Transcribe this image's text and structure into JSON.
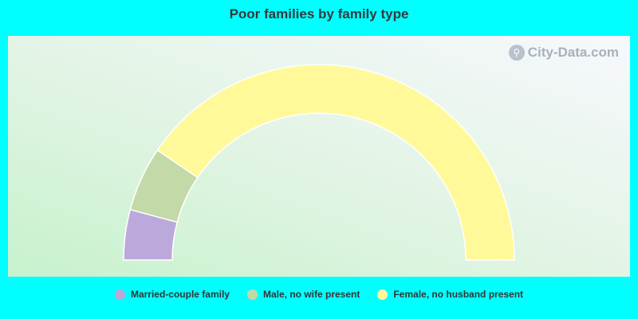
{
  "chart_data": {
    "type": "pie",
    "subtype": "semicircle-donut",
    "title": "Poor families by family type",
    "series": [
      {
        "name": "Married-couple family",
        "value": 8.3,
        "color": "#bca9db"
      },
      {
        "name": "Male, no wife present",
        "value": 10.7,
        "color": "#c4d9a8"
      },
      {
        "name": "Female, no husband present",
        "value": 81.0,
        "color": "#fff99a"
      }
    ],
    "legend_position": "bottom"
  },
  "watermark": {
    "text": "City-Data.com",
    "icon": "magnifier-icon"
  },
  "colors": {
    "page_background": "#00ffff",
    "slice_border": "#ffffff"
  }
}
